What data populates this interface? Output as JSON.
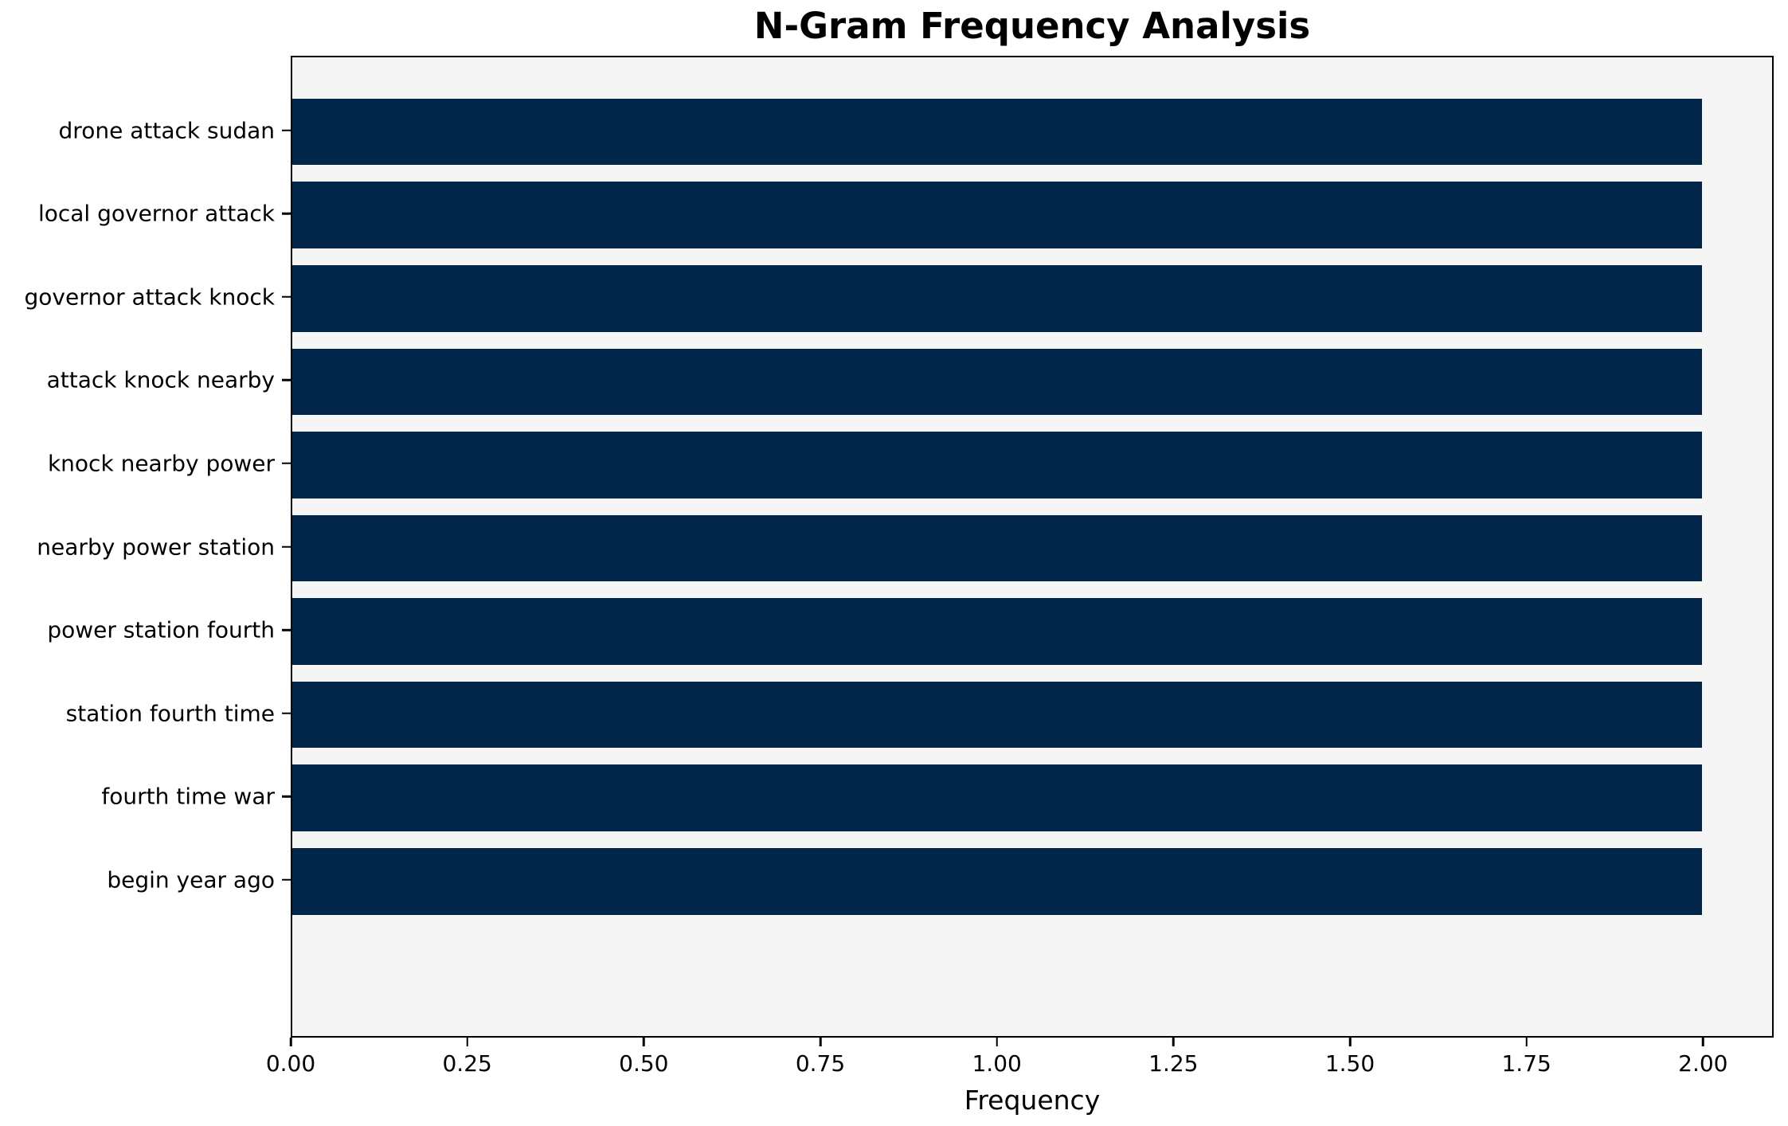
{
  "chart_data": {
    "type": "bar",
    "orientation": "horizontal",
    "title": "N-Gram Frequency Analysis",
    "xlabel": "Frequency",
    "ylabel": "",
    "categories": [
      "drone attack sudan",
      "local governor attack",
      "governor attack knock",
      "attack knock nearby",
      "knock nearby power",
      "nearby power station",
      "power station fourth",
      "station fourth time",
      "fourth time war",
      "begin year ago"
    ],
    "values": [
      2,
      2,
      2,
      2,
      2,
      2,
      2,
      2,
      2,
      2
    ],
    "xlim": [
      0,
      2.1
    ],
    "xtick_labels": [
      "0.00",
      "0.25",
      "0.50",
      "0.75",
      "1.00",
      "1.25",
      "1.50",
      "1.75",
      "2.00"
    ],
    "grid": false,
    "legend": "none",
    "bar_color": "#02254a",
    "plot_bg": "#f5f5f5",
    "figure_bg": "#ffffff",
    "axis_color": "#000000"
  }
}
